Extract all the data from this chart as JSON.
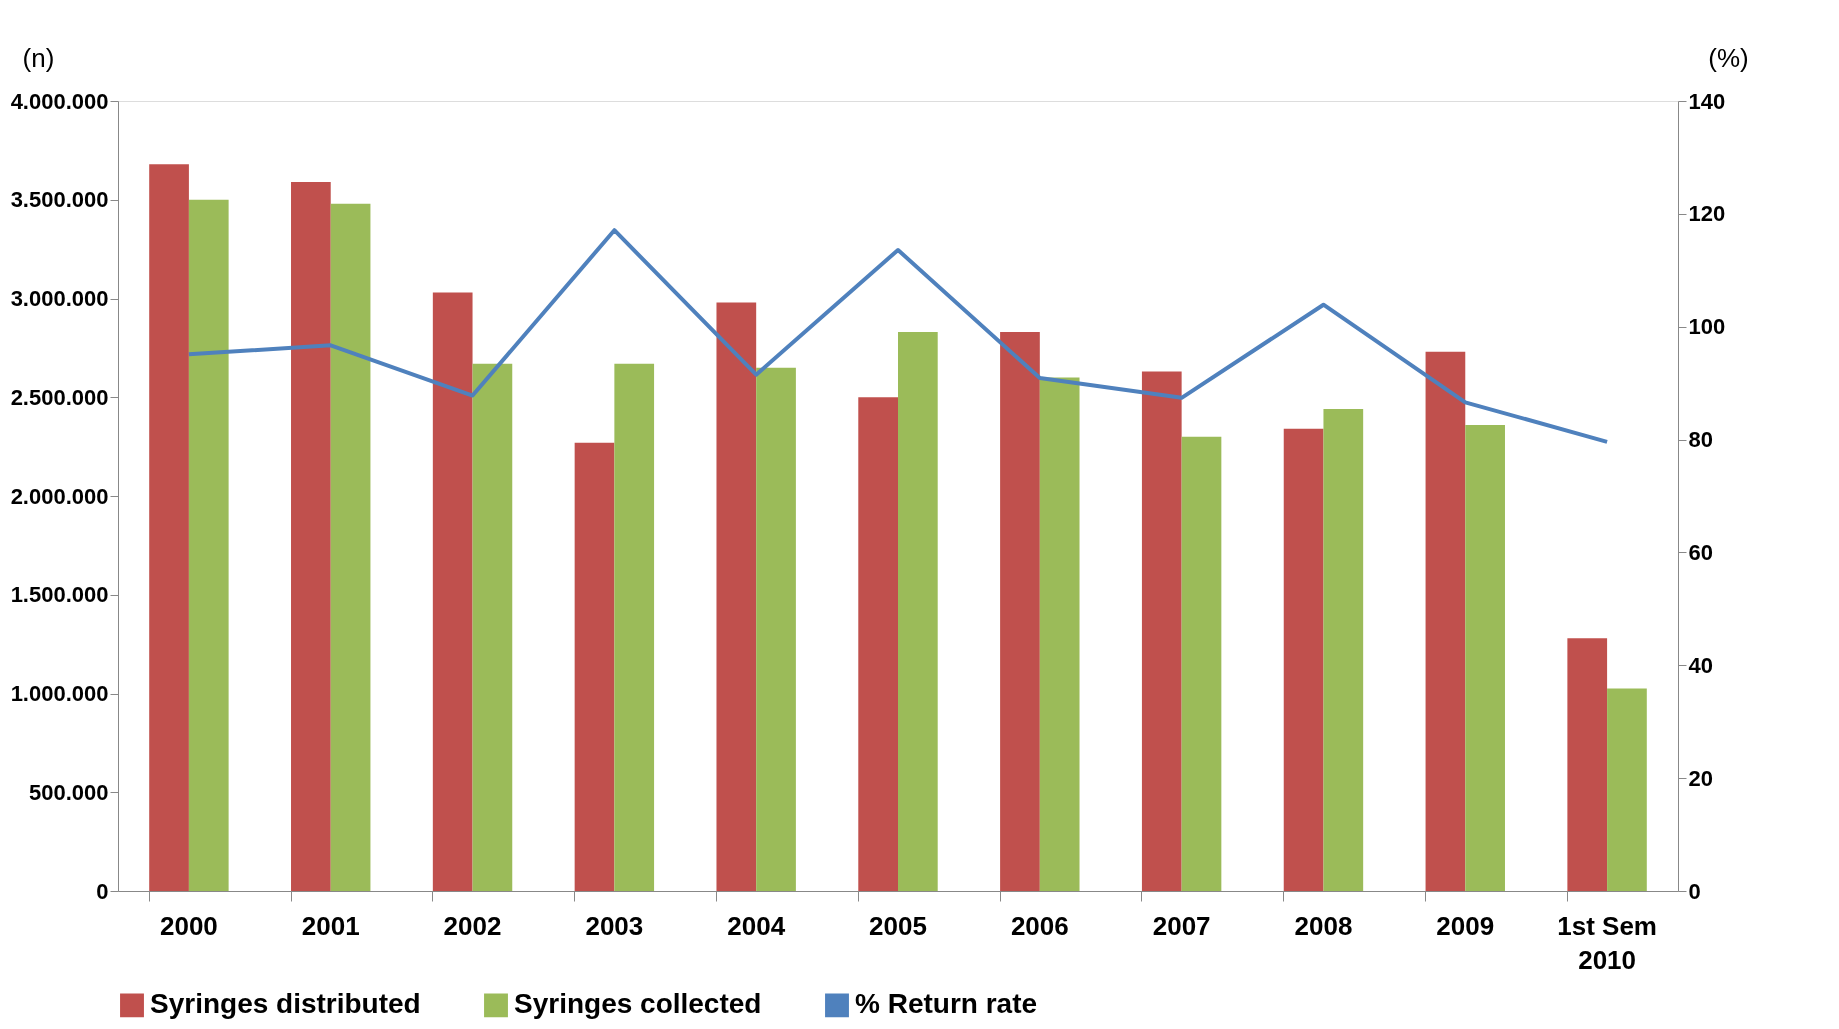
{
  "chart_data": {
    "type": "bar",
    "ylabel": "(n)",
    "y2label": "(%)",
    "categories": [
      "2000",
      "2001",
      "2002",
      "2003",
      "2004",
      "2005",
      "2006",
      "2007",
      "2008",
      "2009",
      "1st Sem 2010"
    ],
    "series": [
      {
        "name": "Syringes distributed",
        "color": "#c0504d",
        "values": [
          3680000,
          3590000,
          3030000,
          2270000,
          2980000,
          2500000,
          2830000,
          2630000,
          2340000,
          2730000,
          1280000
        ]
      },
      {
        "name": "Syringes collected",
        "color": "#9bbb59",
        "values": [
          3500000,
          3480000,
          2670000,
          2670000,
          2650000,
          2830000,
          2600000,
          2300000,
          2440000,
          2360000,
          1025000
        ]
      },
      {
        "name": "% Return rate",
        "type": "line",
        "axis": "y2",
        "color": "#4f81bd",
        "values": [
          95.1,
          96.7,
          87.8,
          117.1,
          91.5,
          113.6,
          90.9,
          87.4,
          103.9,
          86.6,
          79.6
        ]
      }
    ],
    "ylim": [
      0,
      4000000
    ],
    "yticks": [
      0,
      {
        "value": 500000,
        "label": "500.000"
      },
      {
        "value": 1000000,
        "label": "1.000.000"
      },
      {
        "value": 1500000,
        "label": "1.500.000"
      },
      {
        "value": 2000000,
        "label": "2.000.000"
      },
      {
        "value": 2500000,
        "label": "2.500.000"
      },
      {
        "value": 3000000,
        "label": "3.000.000"
      },
      {
        "value": 3500000,
        "label": "3.500.000"
      },
      {
        "value": 4000000,
        "label": "4.000.000"
      }
    ],
    "y2lim": [
      0,
      140
    ],
    "y2ticks": [
      0,
      20,
      40,
      60,
      80,
      100,
      120,
      140
    ],
    "grid": false,
    "legend": "bottom",
    "marker": "none",
    "line_style": "solid"
  }
}
